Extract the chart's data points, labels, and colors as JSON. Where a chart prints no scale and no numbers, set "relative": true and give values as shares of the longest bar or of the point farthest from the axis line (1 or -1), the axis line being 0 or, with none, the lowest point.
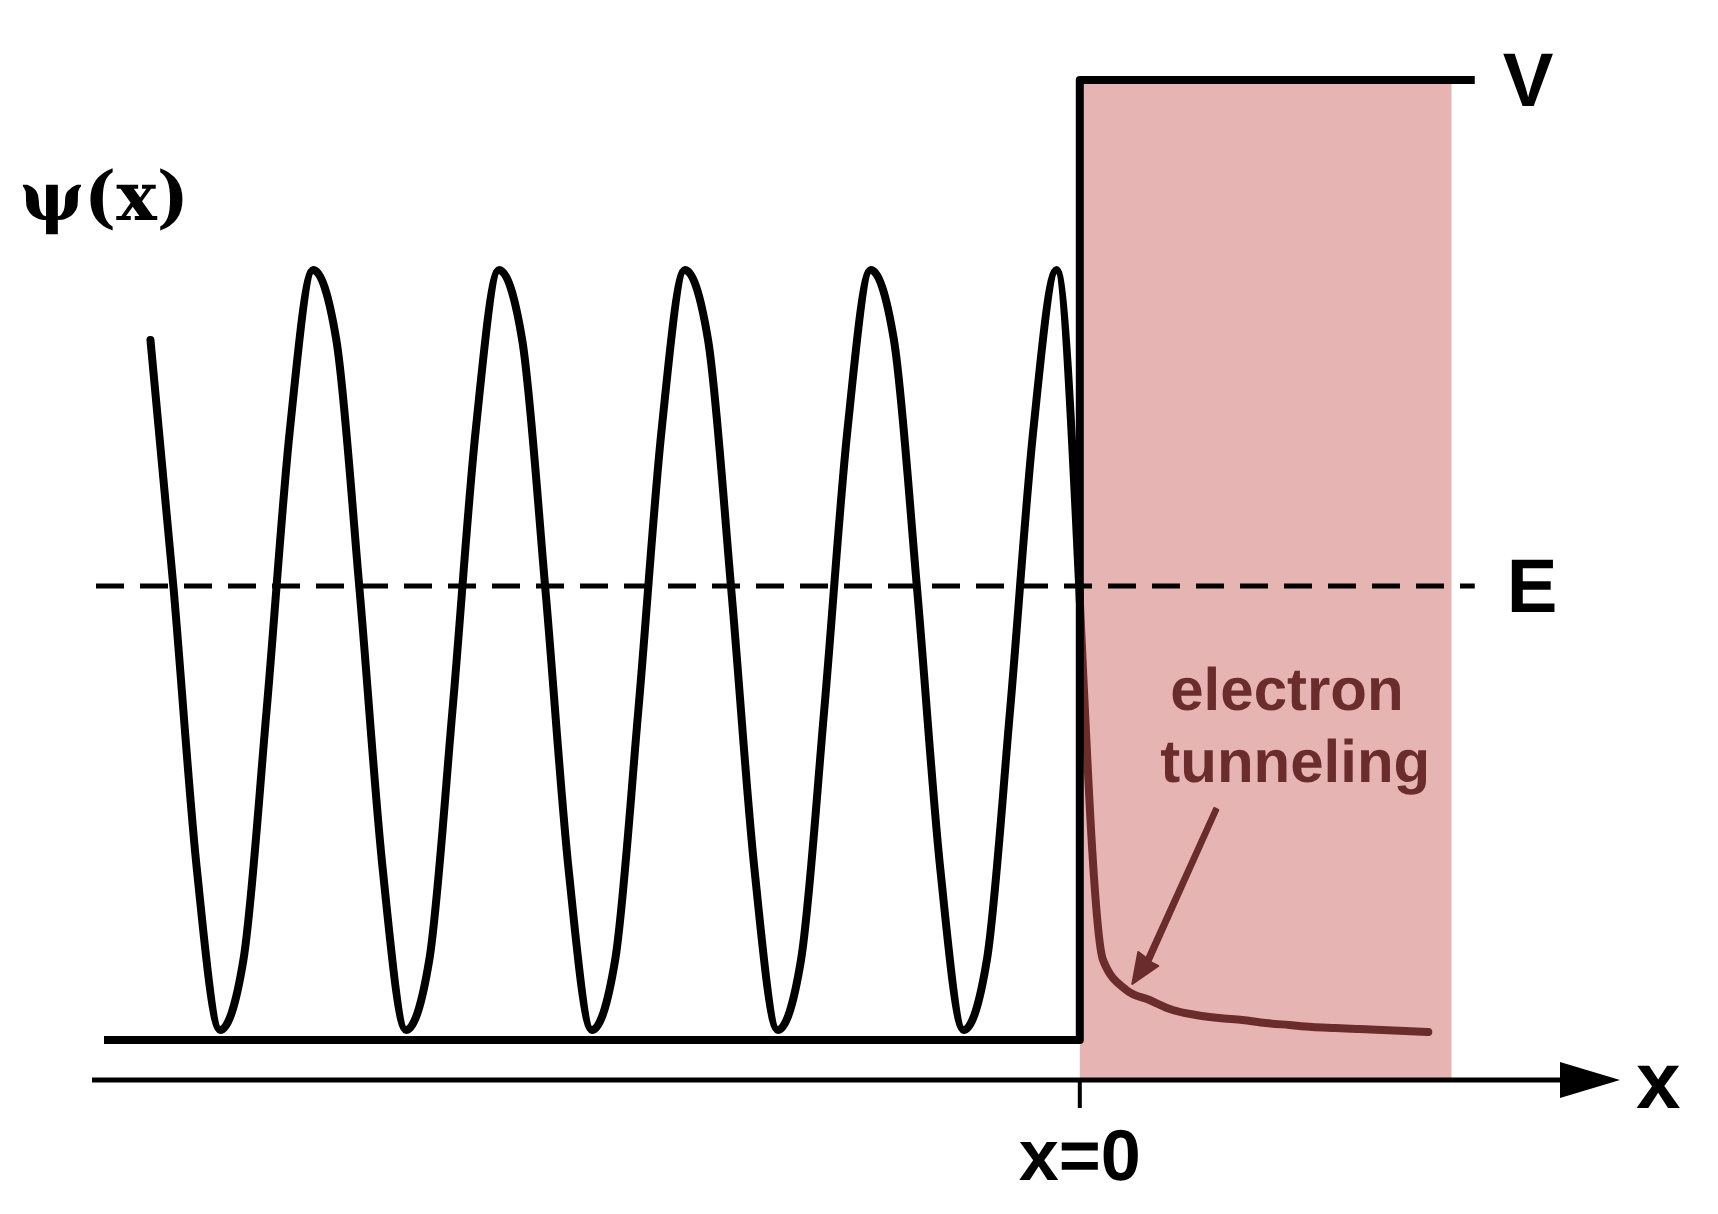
{
  "chart_data": {
    "type": "line",
    "relative": true,
    "xlabel": "x",
    "ylabel": "ψ(x)",
    "categories": [
      null,
      null,
      null,
      null,
      null,
      null,
      null,
      null,
      null,
      null,
      null,
      null,
      null,
      null,
      null,
      null,
      null,
      null,
      null,
      null,
      null,
      null,
      null,
      null,
      null,
      null,
      null,
      null,
      null,
      null,
      null,
      null,
      null,
      null,
      null,
      null,
      null,
      null,
      null,
      null,
      null,
      null,
      null,
      null,
      null,
      null,
      null,
      null,
      null,
      null,
      null,
      null,
      null,
      null,
      null,
      null,
      null,
      null,
      null,
      null,
      null
    ],
    "series": [
      {
        "type": "area",
        "color": "#e6b5b3",
        "values": [
          null,
          null,
          null,
          null,
          null,
          null,
          null,
          null,
          null,
          null,
          null,
          null,
          null,
          null,
          null,
          null,
          null,
          null,
          null,
          null,
          null,
          null,
          null,
          null,
          null,
          null,
          null,
          null,
          null,
          null,
          null,
          null,
          null,
          null,
          null,
          null,
          null,
          null,
          null,
          null,
          null,
          null,
          1,
          1,
          1,
          1,
          1,
          1,
          1,
          1,
          1,
          1,
          1,
          1,
          1,
          1,
          1,
          1,
          1,
          null,
          null
        ]
      },
      {
        "color": "#000000",
        "values": [
          null,
          null,
          0.74,
          0.49,
          0.21,
          0.05,
          0.12,
          0.37,
          0.65,
          0.81,
          0.74,
          0.49,
          0.21,
          0.05,
          0.12,
          0.37,
          0.65,
          0.81,
          0.74,
          0.49,
          0.21,
          0.05,
          0.12,
          0.37,
          0.65,
          0.81,
          0.74,
          0.49,
          0.21,
          0.05,
          0.12,
          0.37,
          0.65,
          0.81,
          0.74,
          0.49,
          0.21,
          0.05,
          0.12,
          0.37,
          0.65,
          0.81,
          0.48,
          null,
          null,
          null,
          null,
          null,
          null,
          null,
          null,
          null,
          null,
          null,
          null,
          null,
          null,
          null,
          null,
          null,
          null
        ]
      },
      {
        "color": "#6b2c2c",
        "values": [
          null,
          null,
          null,
          null,
          null,
          null,
          null,
          null,
          null,
          null,
          null,
          null,
          null,
          null,
          null,
          null,
          null,
          null,
          null,
          null,
          null,
          null,
          null,
          null,
          null,
          null,
          null,
          null,
          null,
          null,
          null,
          null,
          null,
          null,
          null,
          null,
          null,
          null,
          null,
          null,
          null,
          null,
          0.48,
          0.12,
          0.09,
          0.08,
          0.07,
          0.065,
          0.062,
          0.06,
          0.057,
          0.055,
          0.053,
          0.052,
          0.051,
          0.05,
          0.049,
          0.048,
          null,
          null,
          null
        ]
      },
      {
        "type": "step",
        "name": "V",
        "color": "#000000",
        "values": [
          0.04,
          0.04,
          0.04,
          0.04,
          0.04,
          0.04,
          0.04,
          0.04,
          0.04,
          0.04,
          0.04,
          0.04,
          0.04,
          0.04,
          0.04,
          0.04,
          0.04,
          0.04,
          0.04,
          0.04,
          0.04,
          0.04,
          0.04,
          0.04,
          0.04,
          0.04,
          0.04,
          0.04,
          0.04,
          0.04,
          0.04,
          0.04,
          0.04,
          0.04,
          0.04,
          0.04,
          0.04,
          0.04,
          0.04,
          0.04,
          0.04,
          0.04,
          1,
          1,
          1,
          1,
          1,
          1,
          1,
          1,
          1,
          1,
          1,
          1,
          1,
          1,
          1,
          1,
          1,
          1,
          null
        ]
      }
    ],
    "ref_lines": [
      {
        "axis": "y",
        "value": 0.494,
        "label": "E",
        "line_style": "dashed",
        "color": "#000000"
      }
    ],
    "annotations": [
      "electron tunneling",
      "x=0"
    ]
  }
}
